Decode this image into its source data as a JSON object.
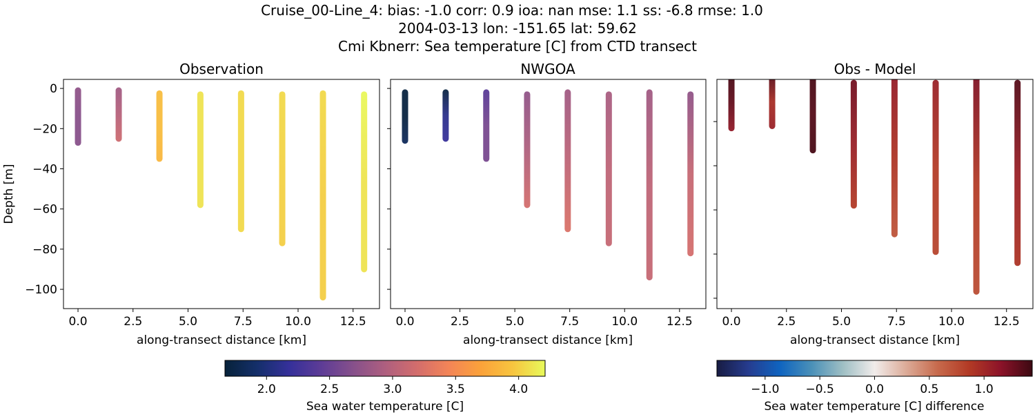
{
  "figure": {
    "suptitle_lines": [
      "Cruise_00-Line_4: bias: -1.0  corr: 0.9  ioa: nan  mse: 1.1  ss: -6.8  rmse: 1.0",
      "2004-03-13 lon: -151.65 lat: 59.62",
      "Cmi Kbnerr: Sea temperature [C] from CTD transect"
    ]
  },
  "chart_data": [
    {
      "type": "scatter",
      "title": "Observation",
      "xlabel": "along-transect distance [km]",
      "ylabel": "Depth [m]",
      "xlim": [
        -0.66,
        13.7
      ],
      "ylim": [
        -109.6,
        4.5
      ],
      "xticks": [
        0.0,
        2.5,
        5.0,
        7.5,
        10.0,
        12.5
      ],
      "xtick_labels": [
        "0.0",
        "2.5",
        "5.0",
        "7.5",
        "10.0",
        "12.5"
      ],
      "yticks": [
        0,
        -20,
        -40,
        -60,
        -80,
        -100
      ],
      "ytick_labels": [
        "0",
        "−20",
        "−40",
        "−60",
        "−80",
        "−100"
      ],
      "colormap": "thermal",
      "color_range": [
        1.67,
        4.21
      ],
      "profiles": [
        {
          "x": 0.0,
          "depth_top": -1,
          "depth_bottom": -27,
          "values": [
            2.75,
            2.7,
            2.7
          ]
        },
        {
          "x": 1.85,
          "depth_top": -1,
          "depth_bottom": -25,
          "values": [
            2.85,
            3.0,
            3.15
          ]
        },
        {
          "x": 3.7,
          "depth_top": -2.5,
          "depth_bottom": -35,
          "values": [
            3.9,
            3.9,
            3.85
          ]
        },
        {
          "x": 5.56,
          "depth_top": -3,
          "depth_bottom": -58,
          "values": [
            4.1,
            4.1,
            4.1
          ]
        },
        {
          "x": 7.41,
          "depth_top": -2.5,
          "depth_bottom": -70,
          "values": [
            4.05,
            4.05,
            4.05
          ]
        },
        {
          "x": 9.28,
          "depth_top": -3,
          "depth_bottom": -77,
          "values": [
            4.05,
            4.02,
            4.0
          ]
        },
        {
          "x": 11.13,
          "depth_top": -2.5,
          "depth_bottom": -104,
          "values": [
            4.05,
            4.0,
            4.0
          ]
        },
        {
          "x": 13.0,
          "depth_top": -3,
          "depth_bottom": -90,
          "values": [
            4.2,
            4.1,
            4.1
          ]
        }
      ]
    },
    {
      "type": "scatter",
      "title": "NWGOA",
      "xlabel": "along-transect distance [km]",
      "xlim": [
        -0.66,
        13.7
      ],
      "ylim": [
        -109.6,
        4.5
      ],
      "xticks": [
        0.0,
        2.5,
        5.0,
        7.5,
        10.0,
        12.5
      ],
      "xtick_labels": [
        "0.0",
        "2.5",
        "5.0",
        "7.5",
        "10.0",
        "12.5"
      ],
      "yticks": [
        0,
        -20,
        -40,
        -60,
        -80,
        -100
      ],
      "colormap": "thermal",
      "color_range": [
        1.67,
        4.21
      ],
      "profiles": [
        {
          "x": 0.0,
          "depth_top": -2,
          "depth_bottom": -26,
          "values": [
            1.7,
            1.7,
            1.85
          ]
        },
        {
          "x": 1.85,
          "depth_top": -2,
          "depth_bottom": -25,
          "values": [
            1.7,
            2.1,
            2.2
          ]
        },
        {
          "x": 3.7,
          "depth_top": -2,
          "depth_bottom": -35,
          "values": [
            2.4,
            2.6,
            2.6
          ]
        },
        {
          "x": 5.56,
          "depth_top": -3,
          "depth_bottom": -58,
          "values": [
            2.75,
            2.95,
            3.2
          ]
        },
        {
          "x": 7.41,
          "depth_top": -2,
          "depth_bottom": -70,
          "values": [
            2.85,
            3.05,
            3.25
          ]
        },
        {
          "x": 9.28,
          "depth_top": -3,
          "depth_bottom": -77,
          "values": [
            2.9,
            3.05,
            3.1
          ]
        },
        {
          "x": 11.13,
          "depth_top": -2,
          "depth_bottom": -94,
          "values": [
            2.85,
            3.05,
            3.1
          ]
        },
        {
          "x": 13.0,
          "depth_top": -3,
          "depth_bottom": -82,
          "values": [
            2.75,
            3.1,
            3.2
          ]
        }
      ]
    },
    {
      "type": "scatter",
      "title": "Obs - Model",
      "xlabel": "along-transect distance [km]",
      "xlim": [
        -0.66,
        13.7
      ],
      "ylim": [
        -104.7,
        -0.9
      ],
      "xticks": [
        0.0,
        2.5,
        5.0,
        7.5,
        10.0,
        12.5
      ],
      "xtick_labels": [
        "0.0",
        "2.5",
        "5.0",
        "7.5",
        "10.0",
        "12.5"
      ],
      "yticks": [
        -20,
        -40,
        -60,
        -80,
        -100
      ],
      "colormap": "balance",
      "color_range": [
        -1.44,
        1.44
      ],
      "profiles": [
        {
          "x": 0.0,
          "depth_top": 0,
          "depth_bottom": -23,
          "values": [
            1.4,
            1.3,
            1.1
          ]
        },
        {
          "x": 1.85,
          "depth_top": 0,
          "depth_bottom": -22,
          "values": [
            1.35,
            0.95,
            1.05
          ]
        },
        {
          "x": 3.7,
          "depth_top": 0,
          "depth_bottom": -33,
          "values": [
            1.4,
            1.35,
            1.4
          ]
        },
        {
          "x": 5.56,
          "depth_top": -2.5,
          "depth_bottom": -58,
          "values": [
            1.25,
            1.05,
            0.85
          ]
        },
        {
          "x": 7.41,
          "depth_top": 0,
          "depth_bottom": -71,
          "values": [
            1.1,
            0.9,
            0.7
          ]
        },
        {
          "x": 9.28,
          "depth_top": -2.5,
          "depth_bottom": -79,
          "values": [
            1.05,
            0.85,
            0.8
          ]
        },
        {
          "x": 11.13,
          "depth_top": 0,
          "depth_bottom": -97,
          "values": [
            1.2,
            0.85,
            0.75
          ]
        },
        {
          "x": 13.0,
          "depth_top": -2.5,
          "depth_bottom": -84,
          "values": [
            1.35,
            1.05,
            0.9
          ]
        }
      ]
    }
  ],
  "colorbars": [
    {
      "label": "Sea water temperature [C]",
      "colormap": "thermal",
      "range": [
        1.67,
        4.21
      ],
      "ticks": [
        2.0,
        2.5,
        3.0,
        3.5,
        4.0
      ],
      "tick_labels": [
        "2.0",
        "2.5",
        "3.0",
        "3.5",
        "4.0"
      ]
    },
    {
      "label": "Sea water temperature [C] difference",
      "colormap": "balance",
      "range": [
        -1.44,
        1.44
      ],
      "ticks": [
        -1.0,
        -0.5,
        0.0,
        0.5,
        1.0
      ],
      "tick_labels": [
        "−1.0",
        "−0.5",
        "0.0",
        "0.5",
        "1.0"
      ]
    }
  ],
  "colormaps": {
    "thermal": [
      "#07223a",
      "#142f6a",
      "#35309a",
      "#5d3c96",
      "#86508b",
      "#ae5f7f",
      "#d36d6c",
      "#f38557",
      "#fba23a",
      "#f7c53f",
      "#e8fa5b"
    ],
    "balance": [
      "#181c43",
      "#263c8f",
      "#0f64c0",
      "#4a90b8",
      "#9fbfc4",
      "#f1eceb",
      "#dcab98",
      "#c76a4c",
      "#b23a25",
      "#8c1329",
      "#3c0912"
    ]
  }
}
